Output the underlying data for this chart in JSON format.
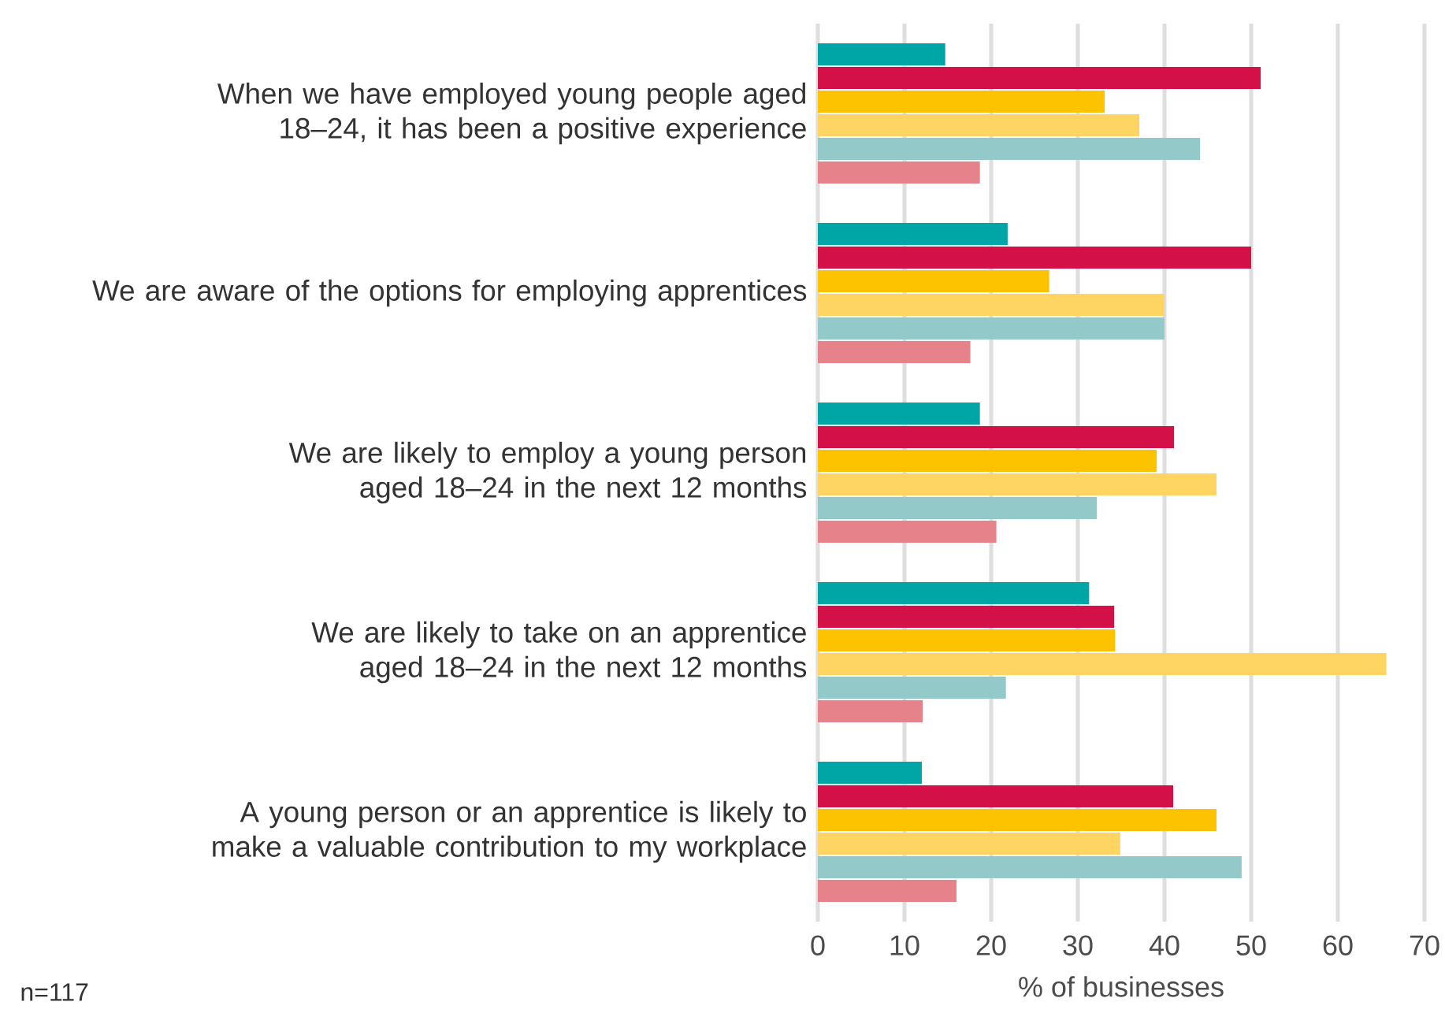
{
  "chart_data": {
    "type": "bar",
    "orientation": "horizontal",
    "xlabel": "% of businesses",
    "categories": [
      "When we have employed young people aged 18–24, it has been a positive experience",
      "We are aware of the options for employing apprentices",
      "We are likely to employ a young person aged 18–24 in the next 12 months",
      "We are likely to take on an apprentice aged 18–24 in the next 12 months",
      "A young person or an apprentice is likely to make a valuable contribution to my workplace"
    ],
    "series": [
      {
        "color": "#00a6a6",
        "values": [
          14.7,
          21.9,
          18.7,
          31.3,
          12
        ]
      },
      {
        "color": "#d41049",
        "values": [
          51.1,
          50,
          41.1,
          34.2,
          41
        ]
      },
      {
        "color": "#fdc300",
        "values": [
          33.1,
          26.7,
          39.1,
          34.3,
          46
        ]
      },
      {
        "color": "#fed563",
        "values": [
          37.1,
          40,
          46,
          65.6,
          34.9
        ]
      },
      {
        "color": "#93c9c8",
        "values": [
          44.1,
          40,
          32.2,
          21.7,
          48.9
        ]
      },
      {
        "color": "#e6838a",
        "values": [
          18.7,
          17.6,
          20.6,
          12.1,
          16
        ]
      }
    ],
    "xlim": [
      0,
      70
    ],
    "xticks": [
      0,
      10,
      20,
      30,
      40,
      50,
      60,
      70
    ],
    "grid": "x",
    "annotations": [
      "n=117"
    ]
  }
}
